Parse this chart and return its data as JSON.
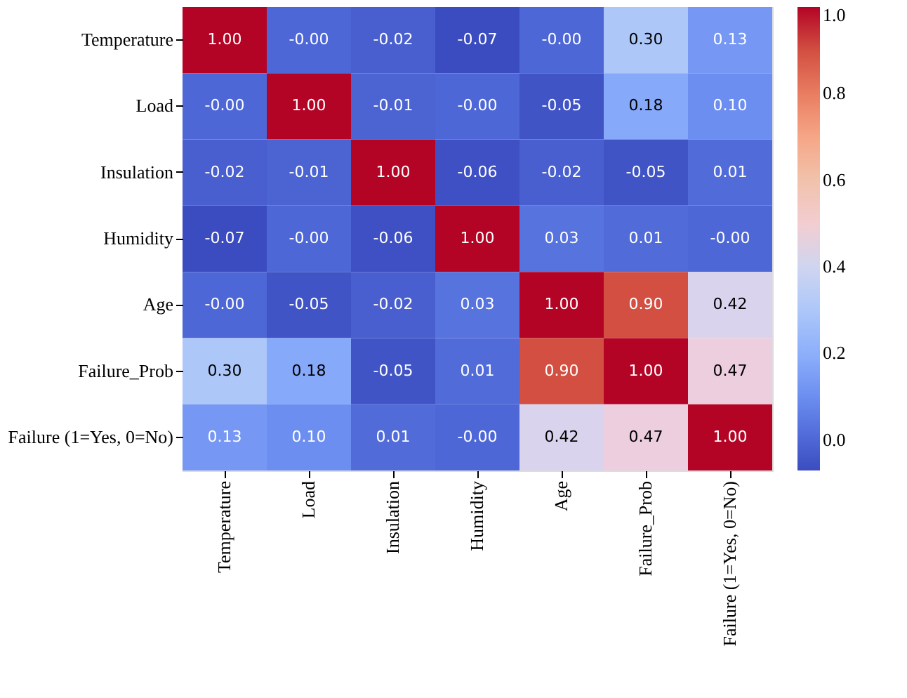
{
  "chart_data": {
    "type": "heatmap",
    "categories": [
      "Temperature",
      "Load",
      "Insulation",
      "Humidity",
      "Age",
      "Failure_Prob",
      "Failure (1=Yes, 0=No)"
    ],
    "y_categories": [
      "Temperature",
      "Load",
      "Insulation",
      "Humidity",
      "Age",
      "Failure_Prob",
      "Failure (1=Yes, 0=No)"
    ],
    "cells": [
      [
        1.0,
        -0.0,
        -0.02,
        -0.07,
        -0.0,
        0.3,
        0.13
      ],
      [
        -0.0,
        1.0,
        -0.01,
        -0.0,
        -0.05,
        0.18,
        0.1
      ],
      [
        -0.02,
        -0.01,
        1.0,
        -0.06,
        -0.02,
        -0.05,
        0.01
      ],
      [
        -0.07,
        -0.0,
        -0.06,
        1.0,
        0.03,
        0.01,
        -0.0
      ],
      [
        -0.0,
        -0.05,
        -0.02,
        0.03,
        1.0,
        0.9,
        0.42
      ],
      [
        0.3,
        0.18,
        -0.05,
        0.01,
        0.9,
        1.0,
        0.47
      ],
      [
        0.13,
        0.1,
        0.01,
        -0.0,
        0.42,
        0.47,
        1.0
      ]
    ],
    "cell_labels": [
      [
        "1.00",
        "-0.00",
        "-0.02",
        "-0.07",
        "-0.00",
        "0.30",
        "0.13"
      ],
      [
        "-0.00",
        "1.00",
        "-0.01",
        "-0.00",
        "-0.05",
        "0.18",
        "0.10"
      ],
      [
        "-0.02",
        "-0.01",
        "1.00",
        "-0.06",
        "-0.02",
        "-0.05",
        "0.01"
      ],
      [
        "-0.07",
        "-0.00",
        "-0.06",
        "1.00",
        "0.03",
        "0.01",
        "-0.00"
      ],
      [
        "-0.00",
        "-0.05",
        "-0.02",
        "0.03",
        "1.00",
        "0.90",
        "0.42"
      ],
      [
        "0.30",
        "0.18",
        "-0.05",
        "0.01",
        "0.90",
        "1.00",
        "0.47"
      ],
      [
        "0.13",
        "0.10",
        "0.01",
        "-0.00",
        "0.42",
        "0.47",
        "1.00"
      ]
    ],
    "clim": [
      -0.07,
      1.0
    ],
    "cticks": [
      {
        "value": 0,
        "label": "0.0"
      },
      {
        "value": 0.2,
        "label": "0.2"
      },
      {
        "value": 0.4,
        "label": "0.4"
      },
      {
        "value": 0.6,
        "label": "0.6"
      },
      {
        "value": 0.8,
        "label": "0.8"
      },
      {
        "value": 1.0,
        "label": "1.0"
      }
    ]
  }
}
